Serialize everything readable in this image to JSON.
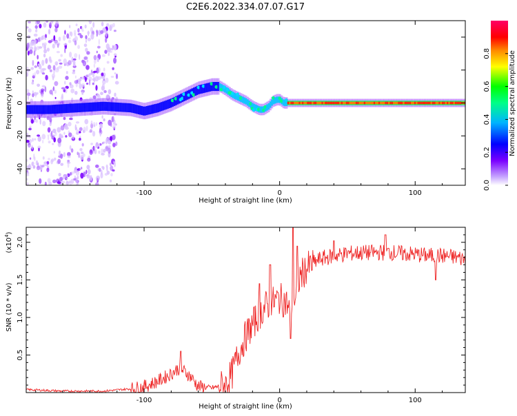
{
  "title": "C2E6.2022.334.07.07.G17",
  "chart_data": [
    {
      "type": "heatmap",
      "name": "spectrogram",
      "xlabel": "Height of straight line (km)",
      "ylabel": "Frequency (Hz)",
      "xlim": [
        -187,
        137
      ],
      "ylim": [
        -50,
        50
      ],
      "x_ticks": [
        -100,
        0,
        100
      ],
      "x_tick_labels": [
        "-100",
        "0",
        "100"
      ],
      "y_ticks": [
        -40,
        -20,
        0,
        20,
        40
      ],
      "y_tick_labels": [
        "-40",
        "-20",
        "0",
        "20",
        "40"
      ],
      "ridge": {
        "x": [
          -187,
          -170,
          -150,
          -130,
          -110,
          -100,
          -90,
          -80,
          -70,
          -60,
          -50,
          -44,
          -40,
          -35,
          -30,
          -25,
          -20,
          -15,
          -12,
          -8,
          -5,
          -2,
          0,
          3,
          6,
          10,
          20,
          40,
          60,
          80,
          100,
          120,
          137
        ],
        "y": [
          -4,
          -4,
          -3,
          -2,
          -3,
          -5,
          -3,
          0,
          4,
          8,
          10,
          10,
          8,
          5,
          3,
          1,
          -2,
          -4,
          -4,
          -2,
          1,
          2,
          2,
          0,
          0,
          0,
          0,
          0,
          0,
          0,
          0,
          0,
          0
        ]
      },
      "noise_region": {
        "x": [
          -187,
          -120
        ],
        "y": [
          -50,
          50
        ]
      },
      "colorbar": {
        "label": "Normalized spectral amplitude",
        "range": [
          0,
          1
        ],
        "ticks": [
          0.0,
          0.2,
          0.4,
          0.6,
          0.8
        ],
        "tick_labels": [
          "0.0",
          "0.2",
          "0.4",
          "0.6",
          "0.8"
        ],
        "colors": [
          "#ffffff",
          "#7a00ff",
          "#0000ff",
          "#00b4ff",
          "#00ff88",
          "#00ff00",
          "#ffff00",
          "#ff8800",
          "#ff0000",
          "#ff0066"
        ]
      }
    },
    {
      "type": "line",
      "name": "snr",
      "xlabel": "Height of straight line (km)",
      "ylabel": "SNR (10 * v/v)",
      "multiplier_label": "(x10",
      "multiplier_exp": "4",
      "multiplier_close": ")",
      "xlim": [
        -187,
        137
      ],
      "ylim": [
        0,
        2.2
      ],
      "x_ticks": [
        -100,
        0,
        100
      ],
      "x_tick_labels": [
        "-100",
        "0",
        "100"
      ],
      "y_ticks": [
        0.5,
        1.0,
        1.5,
        2.0
      ],
      "y_tick_labels": [
        "0.5",
        "1.0",
        "1.5",
        "2.0"
      ],
      "color": "#ee2222",
      "x": [
        -187,
        -160,
        -130,
        -110,
        -100,
        -90,
        -80,
        -75,
        -70,
        -65,
        -60,
        -50,
        -40,
        -35,
        -30,
        -25,
        -20,
        -15,
        -10,
        -5,
        0,
        5,
        8,
        10,
        12,
        15,
        20,
        25,
        30,
        40,
        50,
        60,
        70,
        80,
        90,
        100,
        110,
        120,
        130,
        137
      ],
      "y": [
        0.04,
        0.02,
        0.02,
        0.05,
        0.08,
        0.15,
        0.25,
        0.32,
        0.28,
        0.2,
        0.08,
        0.06,
        0.1,
        0.25,
        0.55,
        0.75,
        0.9,
        1.05,
        1.15,
        1.2,
        1.25,
        1.2,
        1.05,
        1.25,
        1.25,
        1.55,
        1.65,
        1.72,
        1.78,
        1.82,
        1.85,
        1.86,
        1.86,
        1.87,
        1.85,
        1.84,
        1.82,
        1.82,
        1.8,
        1.78
      ],
      "spikes": [
        {
          "x": -73,
          "y": 0.55
        },
        {
          "x": -15,
          "y": 1.45
        },
        {
          "x": -7,
          "y": 1.7
        },
        {
          "x": 8,
          "y": 0.72
        },
        {
          "x": 10,
          "y": 2.2
        },
        {
          "x": 13,
          "y": 1.95
        },
        {
          "x": 40,
          "y": 2.02
        },
        {
          "x": 78,
          "y": 2.1
        },
        {
          "x": 115,
          "y": 1.5
        }
      ]
    }
  ]
}
